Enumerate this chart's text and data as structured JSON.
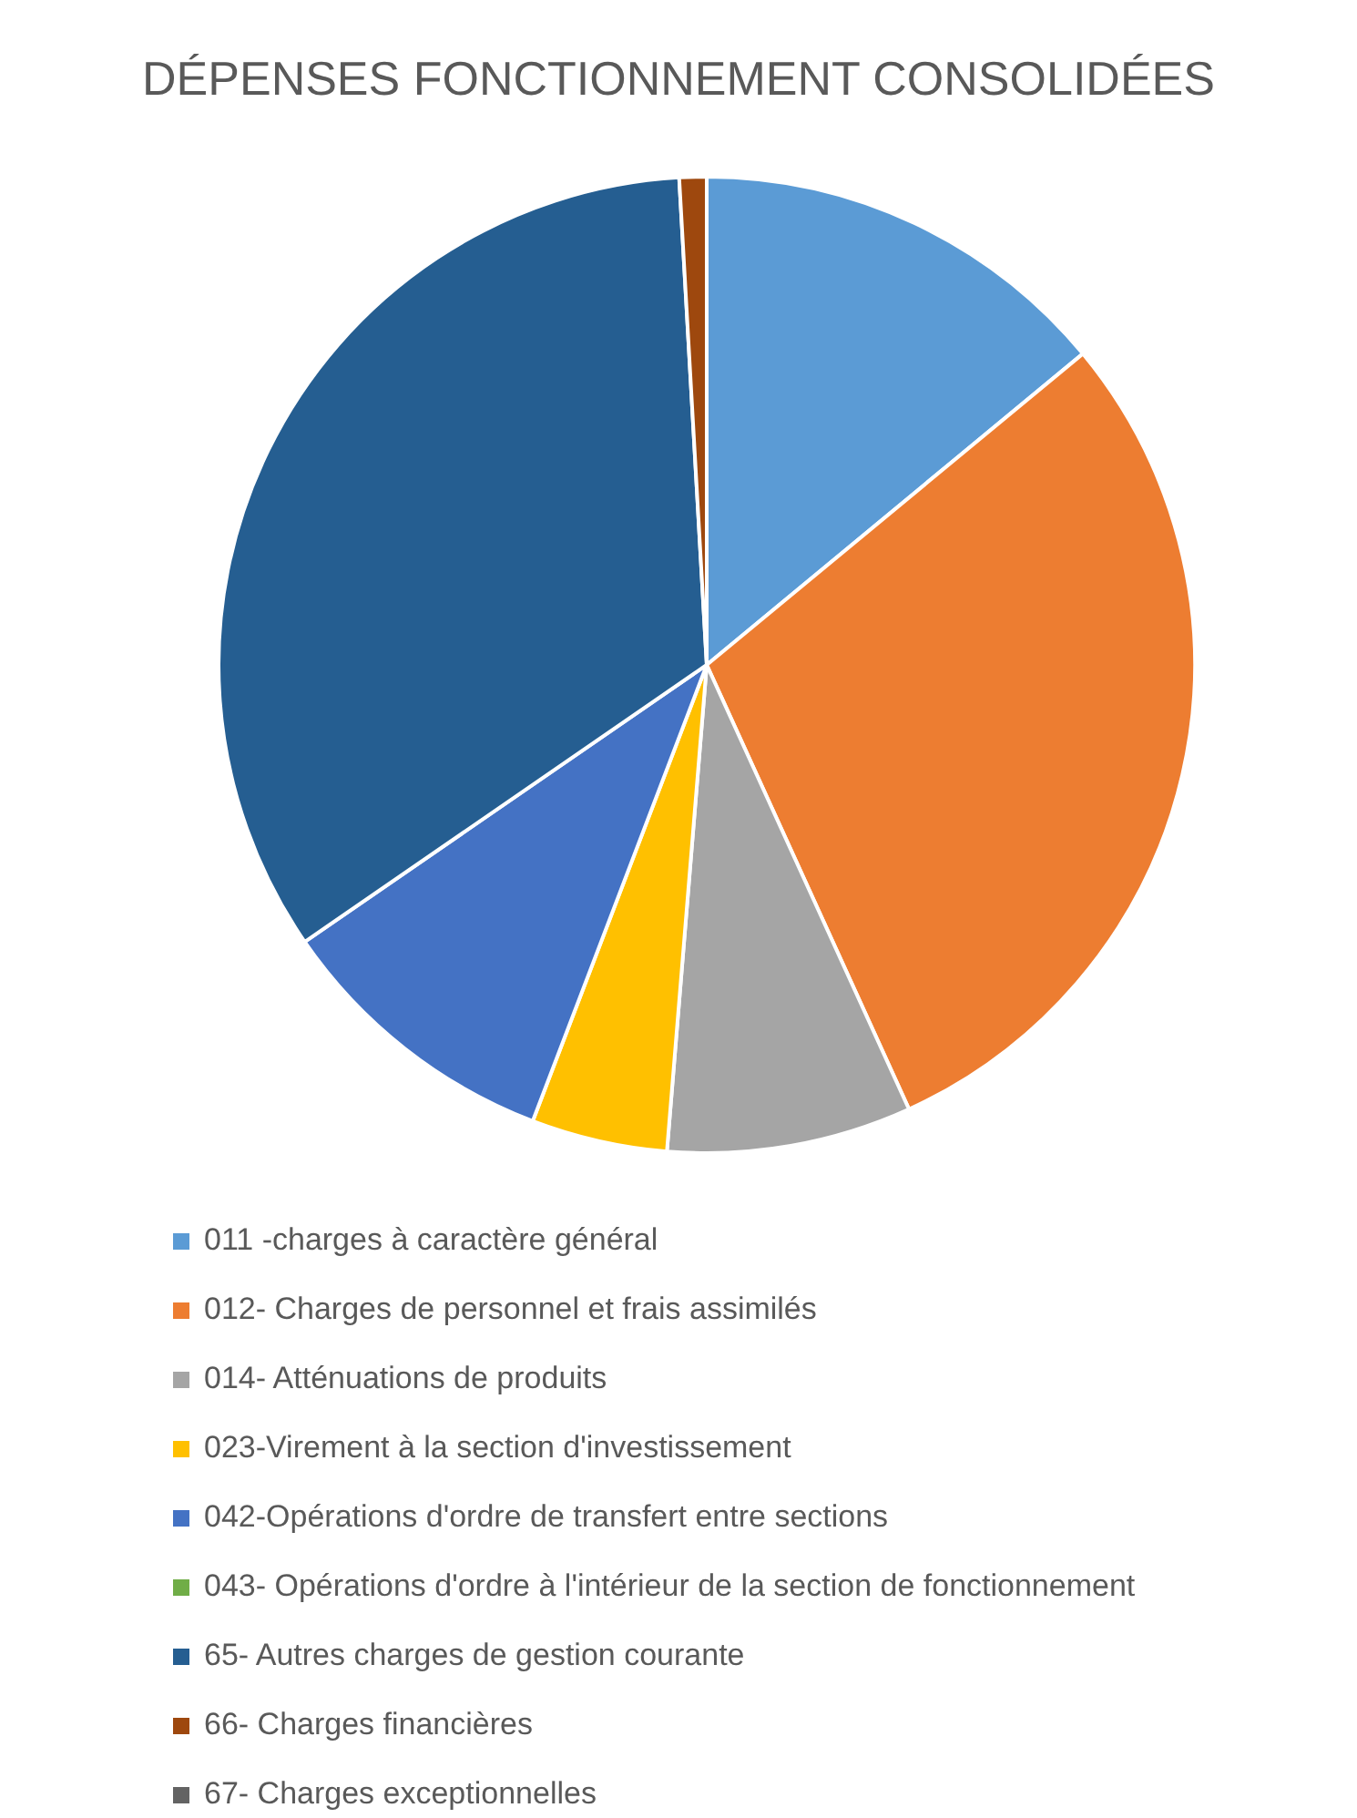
{
  "chart_data": {
    "type": "pie",
    "title": "DÉPENSES FONCTIONNEMENT CONSOLIDÉES",
    "categories": [
      "011 -charges à caractère général",
      "012- Charges de personnel et frais assimilés",
      "014- Atténuations de produits",
      "023-Virement à la section d'investissement",
      "042-Opérations d'ordre de transfert entre sections",
      "043- Opérations d'ordre à l'intérieur de la section de fonctionnement",
      "65- Autres charges de gestion courante",
      "66- Charges financières",
      "67- Charges exceptionnelles"
    ],
    "values": [
      14.0,
      29.2,
      8.1,
      4.5,
      9.6,
      0,
      33.7,
      0.9,
      0
    ],
    "colors": [
      "#5b9bd5",
      "#ed7d31",
      "#a5a5a5",
      "#ffc000",
      "#4472c4",
      "#70ad47",
      "#255e91",
      "#9e480e",
      "#636363"
    ],
    "legend": "bottom"
  }
}
